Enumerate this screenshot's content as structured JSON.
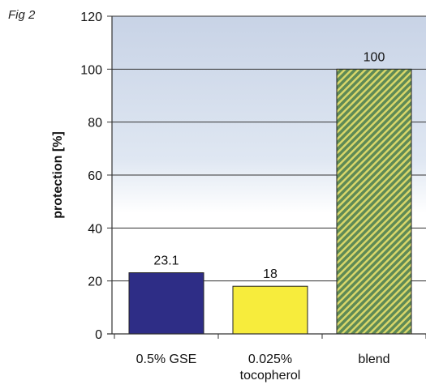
{
  "figure_label": "Fig 2",
  "colors": {
    "bar_gse": "#2e2d86",
    "bar_tocopherol": "#f7ec3c",
    "bar_blend_base": "#5f8a55",
    "bar_blend_stripe": "#d8d66a",
    "plot_bg_top": "#c8d3e6",
    "plot_bg_bottom": "#ffffff"
  },
  "chart_data": {
    "type": "bar",
    "categories": [
      "0.5% GSE",
      "0.025% tocopherol",
      "blend"
    ],
    "category_lines": [
      [
        "0.5% GSE"
      ],
      [
        "0.025%",
        "tocopherol"
      ],
      [
        "blend"
      ]
    ],
    "values": [
      23.1,
      18,
      100
    ],
    "value_labels": [
      "23.1",
      "18",
      "100"
    ],
    "ylabel": "protection [%]",
    "xlabel": "",
    "title": "",
    "ylim": [
      0,
      120
    ],
    "yticks": [
      0,
      20,
      40,
      60,
      80,
      100,
      120
    ],
    "ytick_labels": [
      "0",
      "20",
      "40",
      "60",
      "80",
      "100",
      "120"
    ],
    "grid": true,
    "legend": "none"
  }
}
